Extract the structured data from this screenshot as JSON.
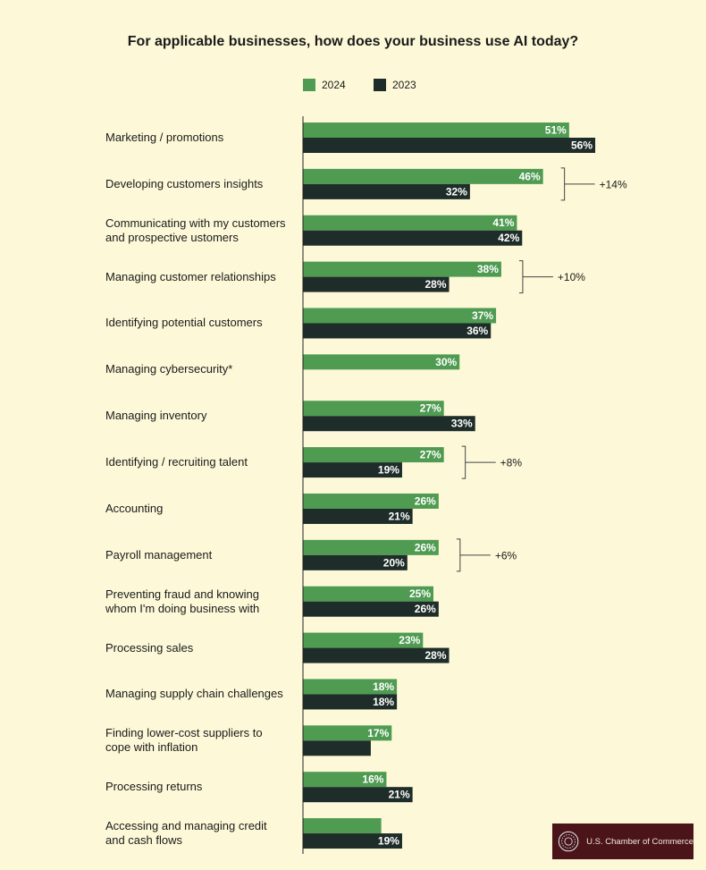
{
  "colors": {
    "c2024": "#4f9b52",
    "c2023": "#1e2d29",
    "background": "#fdf9d8"
  },
  "logo": {
    "text": "U.S. Chamber of Commerce",
    "icon": "chamber-seal-icon"
  },
  "chart_data": {
    "type": "bar",
    "orientation": "horizontal",
    "title": "For applicable businesses, how does your business use AI today?",
    "legend": [
      "2024",
      "2023"
    ],
    "legend_position": "top",
    "categories": [
      [
        "Marketing / promotions"
      ],
      [
        "Developing customers insights"
      ],
      [
        "Communicating with my customers",
        "and prospective ustomers"
      ],
      [
        "Managing customer relationships"
      ],
      [
        "Identifying potential customers"
      ],
      [
        "Managing cybersecurity*"
      ],
      [
        "Managing inventory"
      ],
      [
        "Identifying / recruiting talent"
      ],
      [
        "Accounting"
      ],
      [
        "Payroll management"
      ],
      [
        "Preventing fraud and knowing",
        "whom I'm doing business with"
      ],
      [
        "Processing sales"
      ],
      [
        "Managing supply chain challenges"
      ],
      [
        "Finding lower-cost suppliers to",
        "cope with inflation"
      ],
      [
        "Processing returns"
      ],
      [
        "Accessing and managing credit",
        "and cash flows"
      ]
    ],
    "series": [
      {
        "name": "2024",
        "values": [
          51,
          46,
          41,
          38,
          37,
          30,
          27,
          27,
          26,
          26,
          25,
          23,
          18,
          17,
          16,
          15
        ],
        "labels": [
          "51%",
          "46%",
          "41%",
          "38%",
          "37%",
          "30%",
          "27%",
          "27%",
          "26%",
          "26%",
          "25%",
          "23%",
          "18%",
          "17%",
          "16%",
          ""
        ]
      },
      {
        "name": "2023",
        "values": [
          56,
          32,
          42,
          28,
          36,
          null,
          33,
          19,
          21,
          20,
          26,
          28,
          18,
          13,
          21,
          19
        ],
        "labels": [
          "56%",
          "32%",
          "42%",
          "28%",
          "36%",
          "",
          "33%",
          "19%",
          "21%",
          "20%",
          "26%",
          "28%",
          "18%",
          "",
          "21%",
          "19%"
        ]
      }
    ],
    "annotations": [
      {
        "category_index": 1,
        "text": "+14%"
      },
      {
        "category_index": 3,
        "text": "+10%"
      },
      {
        "category_index": 7,
        "text": "+8%"
      },
      {
        "category_index": 9,
        "text": "+6%"
      }
    ],
    "value_unit": "%"
  }
}
